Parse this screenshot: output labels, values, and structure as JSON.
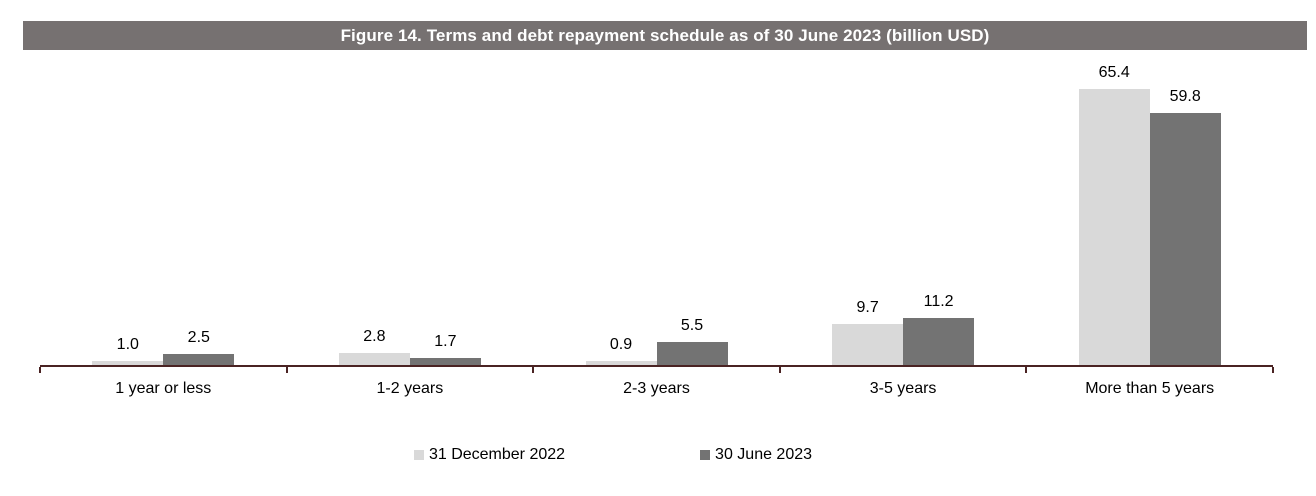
{
  "title": "Figure 14. Terms and debt repayment schedule as of 30 June 2023 (billion USD)",
  "colors": {
    "title_band_bg": "#767171",
    "title_text": "#ffffff",
    "series_light": "#d9d9d9",
    "series_dark": "#737373",
    "axis": "#4a2323",
    "label_text": "#000000"
  },
  "chart_data": {
    "type": "bar",
    "title": "Figure 14. Terms and debt repayment schedule as of 30 June 2023 (billion USD)",
    "categories": [
      "1 year or less",
      "1-2 years",
      "2-3 years",
      "3-5 years",
      "More than 5 years"
    ],
    "series": [
      {
        "name": "31 December 2022",
        "color": "#d9d9d9",
        "values": [
          1.0,
          2.8,
          0.9,
          9.7,
          65.4
        ],
        "labels": [
          "1.0",
          "2.8",
          "0.9",
          "9.7",
          "65.4"
        ]
      },
      {
        "name": "30 June 2023",
        "color": "#737373",
        "values": [
          2.5,
          1.7,
          5.5,
          11.2,
          59.8
        ],
        "labels": [
          "2.5",
          "1.7",
          "5.5",
          "11.2",
          "59.8"
        ]
      }
    ],
    "xlabel": "",
    "ylabel": "",
    "ylim": [
      0,
      70
    ],
    "value_labels_shown": true,
    "gridlines": false,
    "y_axis_shown": false,
    "legend_position": "bottom"
  }
}
